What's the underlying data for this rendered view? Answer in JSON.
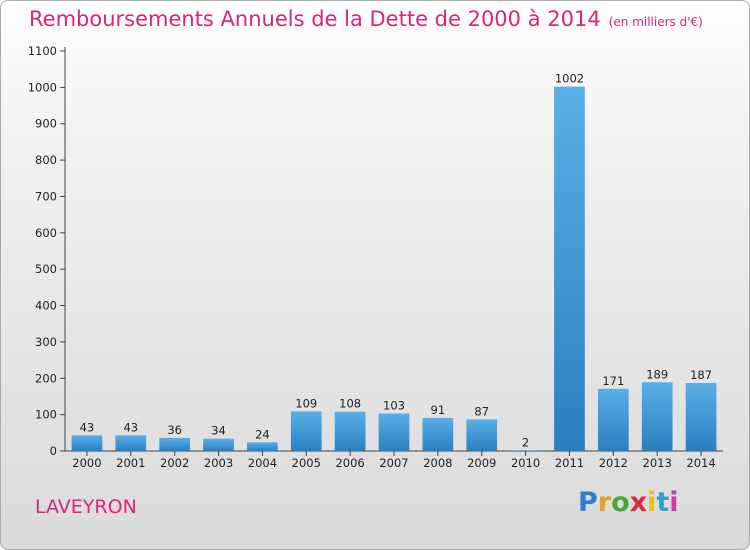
{
  "title": "Remboursements Annuels de la Dette de 2000 à 2014",
  "unit": "(en milliers d'€)",
  "location": "LAVEYRON",
  "logo_text": "Proxiti",
  "colors": {
    "accent": "#d6267b",
    "bar_top": "#5aafe8",
    "bar_bottom": "#2a7fc0"
  },
  "chart_data": {
    "type": "bar",
    "title": "Remboursements Annuels de la Dette de 2000 à 2014",
    "xlabel": "",
    "ylabel": "",
    "ylim": [
      0,
      1100
    ],
    "yticks": [
      0,
      100,
      200,
      300,
      400,
      500,
      600,
      700,
      800,
      900,
      1000,
      1100
    ],
    "grid": false,
    "categories": [
      "2000",
      "2001",
      "2002",
      "2003",
      "2004",
      "2005",
      "2006",
      "2007",
      "2008",
      "2009",
      "2010",
      "2011",
      "2012",
      "2013",
      "2014"
    ],
    "values": [
      43,
      43,
      36,
      34,
      24,
      109,
      108,
      103,
      91,
      87,
      2,
      1002,
      171,
      189,
      187
    ]
  }
}
